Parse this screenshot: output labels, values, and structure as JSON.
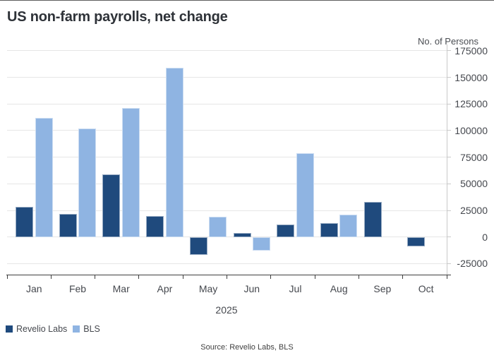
{
  "header": {
    "title": "US non-farm payrolls, net change"
  },
  "chart_data": {
    "type": "bar",
    "title": "US non-farm payrolls, net change",
    "y_axis_label": "No. of Persons",
    "x_axis_group_label": "2025",
    "categories": [
      "Jan",
      "Feb",
      "Mar",
      "Apr",
      "May",
      "Jun",
      "Jul",
      "Aug",
      "Sep",
      "Oct"
    ],
    "series": [
      {
        "name": "Revelio Labs",
        "color": "#1F4A7D",
        "values": [
          28000,
          22000,
          59000,
          20000,
          -17000,
          4000,
          12000,
          13000,
          33000,
          -9000
        ]
      },
      {
        "name": "BLS",
        "color": "#8FB4E2",
        "values": [
          112000,
          102000,
          121000,
          159000,
          19000,
          -13000,
          79000,
          21000,
          null,
          null
        ]
      }
    ],
    "y_ticks": [
      -25000,
      0,
      25000,
      50000,
      75000,
      100000,
      125000,
      150000,
      175000
    ],
    "ylim": [
      -25000,
      175000
    ],
    "grid": true,
    "legend_position": "bottom-left",
    "source": "Source: Revelio Labs, BLS"
  }
}
